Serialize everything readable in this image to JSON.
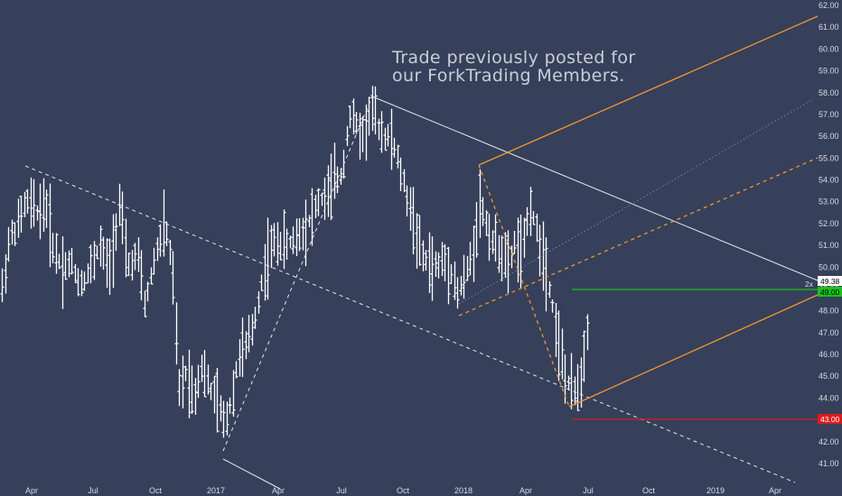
{
  "chart_data": {
    "type": "ohlc",
    "annotation_lines": [
      "Trade previously posted for",
      "our ForkTrading Members."
    ],
    "x_ticks": [
      "Apr",
      "Jul",
      "Oct",
      "2017",
      "Apr",
      "Jul",
      "Oct",
      "2018",
      "Apr",
      "Jul",
      "Oct",
      "2019",
      "Apr"
    ],
    "y_ticks": [
      "41.00",
      "42.00",
      "43.00",
      "44.00",
      "45.00",
      "46.00",
      "47.00",
      "48.00",
      "49.00",
      "50.00",
      "51.00",
      "52.00",
      "53.00",
      "54.00",
      "55.00",
      "56.00",
      "57.00",
      "58.00",
      "59.00",
      "60.00",
      "61.00",
      "62.00"
    ],
    "ylim": [
      40.6,
      62.3
    ],
    "price_labels": [
      {
        "text": "49.38",
        "value": 49.38,
        "color": "#ffffff",
        "text_color": "#000000"
      },
      {
        "text": "49.00",
        "value": 49.0,
        "color": "#19c119",
        "text_color": "#000000"
      },
      {
        "text": "43.00",
        "value": 43.0,
        "color": "#e01b1b",
        "text_color": "#ffffff"
      }
    ],
    "scale_marker": "2x",
    "horizontal_lines": [
      {
        "name": "target",
        "value": 49.0,
        "color": "#19c119"
      },
      {
        "name": "stop",
        "value": 43.0,
        "color": "#e01b1b"
      }
    ],
    "colors": {
      "background": "#36405a",
      "bars": "#ffffff",
      "channel": "#f0962d",
      "trendline": "#ffffff",
      "midline": "#5c7fa8"
    }
  }
}
